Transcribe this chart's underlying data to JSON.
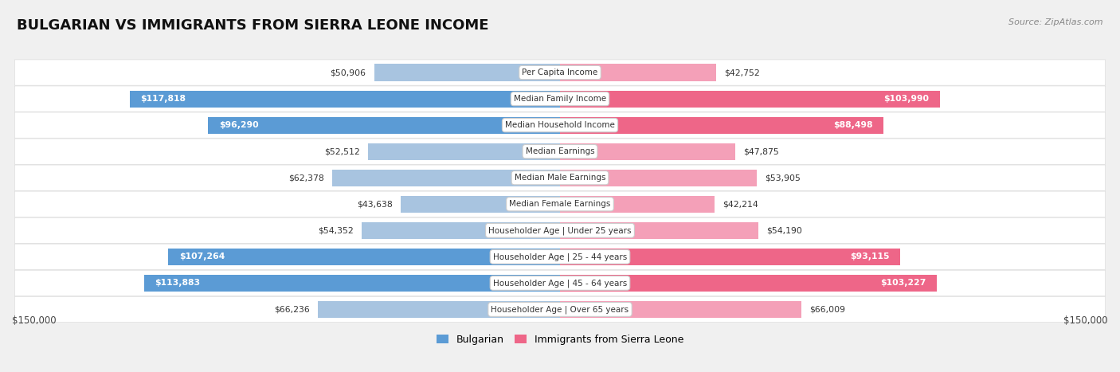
{
  "title": "BULGARIAN VS IMMIGRANTS FROM SIERRA LEONE INCOME",
  "source": "Source: ZipAtlas.com",
  "categories": [
    "Per Capita Income",
    "Median Family Income",
    "Median Household Income",
    "Median Earnings",
    "Median Male Earnings",
    "Median Female Earnings",
    "Householder Age | Under 25 years",
    "Householder Age | 25 - 44 years",
    "Householder Age | 45 - 64 years",
    "Householder Age | Over 65 years"
  ],
  "bulgarian_values": [
    50906,
    117818,
    96290,
    52512,
    62378,
    43638,
    54352,
    107264,
    113883,
    66236
  ],
  "sierra_leone_values": [
    42752,
    103990,
    88498,
    47875,
    53905,
    42214,
    54190,
    93115,
    103227,
    66009
  ],
  "max_value": 150000,
  "bulgarian_color_light": "#a8c4e0",
  "bulgarian_color_dark": "#5b9bd5",
  "sierra_leone_color_light": "#f4a0b8",
  "sierra_leone_color_dark": "#ee6688",
  "bg_color": "#f0f0f0",
  "row_bg_color": "#ffffff",
  "xlabel_left": "$150,000",
  "xlabel_right": "$150,000",
  "legend_bulgarian": "Bulgarian",
  "legend_sierra_leone": "Immigrants from Sierra Leone",
  "threshold": 75000
}
